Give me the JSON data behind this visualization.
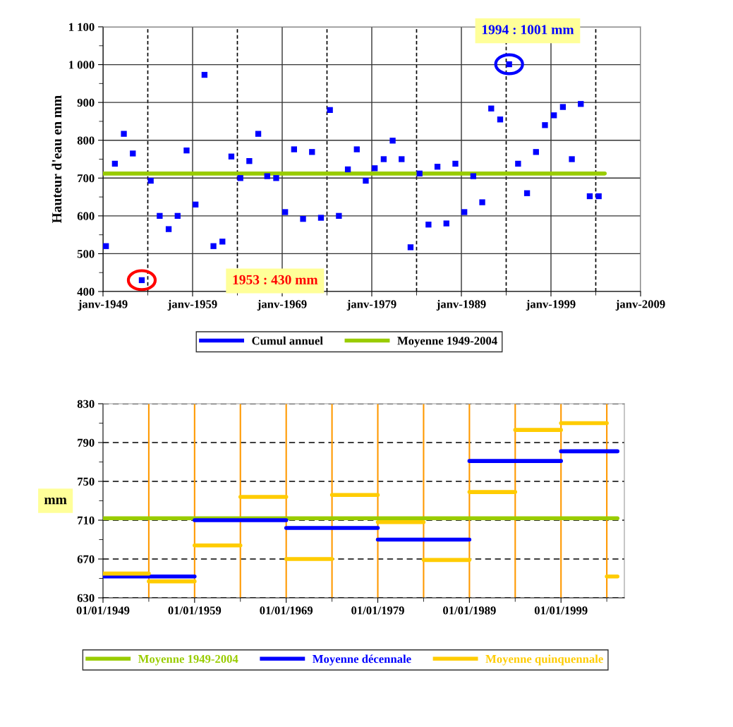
{
  "chart_data": [
    {
      "type": "scatter",
      "ylabel": "Hauteur d'eau en mm",
      "xlim": [
        "1949-01-01",
        "2009-01-01"
      ],
      "xticks": [
        {
          "value": "1949-01-01",
          "label": "janv-1949"
        },
        {
          "value": "1959-01-01",
          "label": "janv-1959"
        },
        {
          "value": "1969-01-01",
          "label": "janv-1969"
        },
        {
          "value": "1979-01-01",
          "label": "janv-1979"
        },
        {
          "value": "1989-01-01",
          "label": "janv-1989"
        },
        {
          "value": "1999-01-01",
          "label": "janv-1999"
        },
        {
          "value": "2009-01-01",
          "label": "janv-2009"
        },
        {
          "value": "1954-01-01",
          "label": null
        },
        {
          "value": "1964-01-01",
          "label": null
        },
        {
          "value": "1974-01-01",
          "label": null
        },
        {
          "value": "1984-01-01",
          "label": null
        },
        {
          "value": "1994-01-01",
          "label": null
        },
        {
          "value": "2004-01-01",
          "label": null
        }
      ],
      "ylim": [
        400,
        1100
      ],
      "yticks": [
        400,
        500,
        600,
        700,
        800,
        900,
        {
          "value": 1000,
          "label": "1 000"
        },
        {
          "value": 1100,
          "label": "1 100"
        },
        {
          "value": 450,
          "label": null
        },
        {
          "value": 550,
          "label": null
        },
        {
          "value": 650,
          "label": null
        },
        {
          "value": 750,
          "label": null
        },
        {
          "value": 850,
          "label": null
        },
        {
          "value": 950,
          "label": null
        },
        {
          "value": 1050,
          "label": null
        }
      ],
      "grid": true,
      "legend": "bottom",
      "annotations": [
        "1953 : 430 mm",
        "1994 : 1001 mm"
      ],
      "series": [
        {
          "name": "Cumul annuel",
          "type": "scatter",
          "marker": "square",
          "color": "#0000ff",
          "x": [
            "1949-05-01",
            "1950-05-01",
            "1951-05-01",
            "1952-05-01",
            "1953-05-01",
            "1954-05-01",
            "1955-05-01",
            "1956-05-01",
            "1957-05-01",
            "1958-05-01",
            "1959-05-01",
            "1960-05-01",
            "1961-05-01",
            "1962-05-01",
            "1963-05-01",
            "1964-05-01",
            "1965-05-01",
            "1966-05-01",
            "1967-05-01",
            "1968-05-01",
            "1969-05-01",
            "1970-05-01",
            "1971-05-01",
            "1972-05-01",
            "1973-05-01",
            "1974-05-01",
            "1975-05-01",
            "1976-05-01",
            "1977-05-01",
            "1978-05-01",
            "1979-05-01",
            "1980-05-01",
            "1981-05-01",
            "1982-05-01",
            "1983-05-01",
            "1984-05-01",
            "1985-05-01",
            "1986-05-01",
            "1987-05-01",
            "1988-05-01",
            "1989-05-01",
            "1990-05-01",
            "1991-05-01",
            "1992-05-01",
            "1993-05-01",
            "1994-05-01",
            "1995-05-01",
            "1996-05-01",
            "1997-05-01",
            "1998-05-01",
            "1999-05-01",
            "2000-05-01",
            "2001-05-01",
            "2002-05-01",
            "2003-05-01",
            "2004-05-01"
          ],
          "values": [
            520,
            738,
            817,
            765,
            430,
            693,
            600,
            565,
            600,
            773,
            630,
            973,
            520,
            532,
            757,
            700,
            745,
            817,
            705,
            700,
            610,
            776,
            592,
            769,
            595,
            880,
            600,
            723,
            776,
            693,
            726,
            750,
            799,
            750,
            517,
            712,
            577,
            730,
            580,
            738,
            610,
            705,
            636,
            884,
            855,
            1001,
            738,
            660,
            769,
            840,
            866,
            888,
            750,
            896,
            652,
            652
          ]
        },
        {
          "name": "Moyenne 1949-2004",
          "type": "line",
          "color": "#99cc00",
          "x": [
            "1949-01-01",
            "2005-01-01"
          ],
          "values": [
            712,
            712
          ]
        }
      ]
    },
    {
      "type": "line",
      "ylabel": "mm",
      "xlim": [
        "1949-01-01",
        "2005-12-01"
      ],
      "xticks": [
        {
          "value": "1949-01-01",
          "label": "01/01/1949"
        },
        {
          "value": "1959-01-01",
          "label": "01/01/1959"
        },
        {
          "value": "1969-01-01",
          "label": "01/01/1969"
        },
        {
          "value": "1979-01-01",
          "label": "01/01/1979"
        },
        {
          "value": "1989-01-01",
          "label": "01/01/1989"
        },
        {
          "value": "1999-01-01",
          "label": "01/01/1999"
        },
        {
          "value": "1954-01-01",
          "label": null
        },
        {
          "value": "1964-01-01",
          "label": null
        },
        {
          "value": "1974-01-01",
          "label": null
        },
        {
          "value": "1984-01-01",
          "label": null
        },
        {
          "value": "1994-01-01",
          "label": null
        },
        {
          "value": "2004-01-01",
          "label": null
        }
      ],
      "ylim": [
        630,
        830
      ],
      "yticks": [
        630,
        670,
        710,
        750,
        790,
        830,
        {
          "value": 650,
          "label": null
        },
        {
          "value": 690,
          "label": null
        },
        {
          "value": 730,
          "label": null
        },
        {
          "value": 770,
          "label": null
        },
        {
          "value": 810,
          "label": null
        }
      ],
      "grid": "y",
      "legend": "bottom",
      "ref_lines": [
        {
          "axis": "x",
          "value": "1954-01-01",
          "color": "#ff9900"
        },
        {
          "axis": "x",
          "value": "1959-01-01",
          "color": "#ff9900"
        },
        {
          "axis": "x",
          "value": "1964-01-01",
          "color": "#ff9900"
        },
        {
          "axis": "x",
          "value": "1969-01-01",
          "color": "#ff9900"
        },
        {
          "axis": "x",
          "value": "1974-01-01",
          "color": "#ff9900"
        },
        {
          "axis": "x",
          "value": "1979-01-01",
          "color": "#ff9900"
        },
        {
          "axis": "x",
          "value": "1984-01-01",
          "color": "#ff9900"
        },
        {
          "axis": "x",
          "value": "1989-01-01",
          "color": "#ff9900"
        },
        {
          "axis": "x",
          "value": "1994-01-01",
          "color": "#ff9900"
        },
        {
          "axis": "x",
          "value": "1999-01-01",
          "color": "#ff9900"
        },
        {
          "axis": "x",
          "value": "2004-01-01",
          "color": "#ff9900"
        }
      ],
      "series": [
        {
          "name": "Moyenne 1949-2004",
          "color": "#99cc00",
          "x": [
            "1949-01-01",
            "2005-03-01"
          ],
          "values": [
            712,
            712
          ]
        },
        {
          "name": "Moyenne décennale",
          "color": "#0000ff",
          "x": [
            "1949-01-01",
            "1959-01-01",
            "1959-01-01",
            "1969-01-01",
            "1969-01-01",
            "1979-01-01",
            "1979-01-01",
            "1989-01-01",
            "1989-01-01",
            "1999-01-01",
            "1999-01-01",
            "2005-03-01"
          ],
          "values": [
            652,
            652,
            710,
            710,
            702,
            702,
            690,
            690,
            771,
            771,
            781,
            781
          ]
        },
        {
          "name": "Moyenne quinquennale",
          "color": "#ffcc00",
          "x": [
            "1949-01-01",
            "1954-01-01",
            "1954-01-01",
            "1959-01-01",
            "1959-01-01",
            "1964-01-01",
            "1964-01-01",
            "1969-01-01",
            "1969-01-01",
            "1974-01-01",
            "1974-01-01",
            "1979-01-01",
            "1979-01-01",
            "1984-01-01",
            "1984-01-01",
            "1989-01-01",
            "1989-01-01",
            "1994-01-01",
            "1994-01-01",
            "1999-01-01",
            "1999-01-01",
            "2004-01-01",
            "2004-01-01",
            "2005-03-01"
          ],
          "values": [
            655,
            655,
            647,
            647,
            684,
            684,
            734,
            734,
            670,
            670,
            736,
            736,
            708,
            708,
            669,
            669,
            739,
            739,
            803,
            803,
            810,
            810,
            652,
            652
          ]
        }
      ]
    }
  ]
}
